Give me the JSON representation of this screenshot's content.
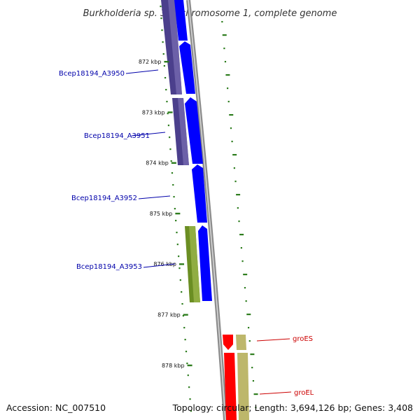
{
  "title": "Burkholderia sp. 383 chromosome 1, complete genome",
  "footer": {
    "accession": "Accession: NC_007510",
    "summary": "Topology: circular; Length: 3,694,126 bp; Genes: 3,408"
  },
  "colors": {
    "backbone": "#8c8c8c",
    "tick": "#2e7d1e",
    "gene_label_blue": "#0000aa",
    "gene_label_red": "#cc0000",
    "strand_blue": "#0000ff",
    "strand_purple": "#4b3f8c",
    "strand_olive": "#6b8e23",
    "strand_red": "#ff0000",
    "strand_khaki": "#bdb76b"
  },
  "ticks": [
    {
      "label": "872 kbp",
      "kbp": 872
    },
    {
      "label": "873 kbp",
      "kbp": 873
    },
    {
      "label": "874 kbp",
      "kbp": 874
    },
    {
      "label": "875 kbp",
      "kbp": 875
    },
    {
      "label": "876 kbp",
      "kbp": 876
    },
    {
      "label": "877 kbp",
      "kbp": 877
    },
    {
      "label": "878 kbp",
      "kbp": 878
    }
  ],
  "gene_labels": [
    {
      "name": "Bcep18194_A3950",
      "color": "#0000aa"
    },
    {
      "name": "Bcep18194_A3951",
      "color": "#0000aa"
    },
    {
      "name": "Bcep18194_A3952",
      "color": "#0000aa"
    },
    {
      "name": "Bcep18194_A3953",
      "color": "#0000aa"
    },
    {
      "name": "groES",
      "color": "#cc0000"
    },
    {
      "name": "groEL",
      "color": "#cc0000"
    }
  ]
}
